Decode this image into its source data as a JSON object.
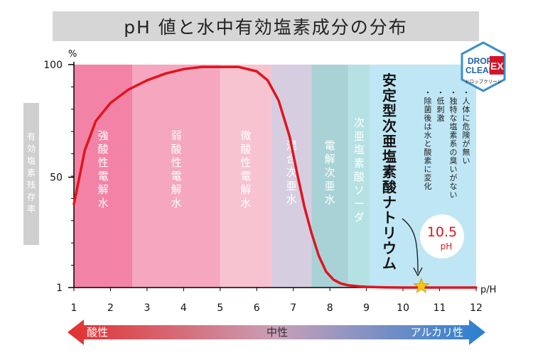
{
  "title": "pH 値と水中有効塩素成分の分布",
  "ylabel": "有効塩素残存率",
  "yunit": "%",
  "xunit": "p/H",
  "logo": {
    "line1": "DROP",
    "line2": "CLEAN",
    "badge": "EX",
    "sub": "ドロップクリーン"
  },
  "chart_data": {
    "type": "line",
    "title": "pH 値と水中有効塩素成分の分布",
    "xlabel": "p/H",
    "ylabel": "有効塩素残存率",
    "xlim": [
      1,
      12
    ],
    "ylim": [
      1,
      100
    ],
    "x_ticks": [
      1,
      2,
      3,
      4,
      5,
      6,
      7,
      8,
      9,
      10,
      11,
      12
    ],
    "y_ticks": [
      1,
      50,
      100
    ],
    "series": [
      {
        "x": [
          1.0,
          1.3,
          1.6,
          2.0,
          2.5,
          3.0,
          3.5,
          4.0,
          4.5,
          5.0,
          5.5,
          6.0,
          6.3,
          6.6,
          6.9,
          7.1,
          7.3,
          7.5,
          7.7,
          7.9,
          8.1,
          8.3,
          8.5,
          8.8,
          9.0,
          9.5,
          10.0,
          11.0,
          12.0
        ],
        "y": [
          38,
          62,
          75,
          83,
          89,
          93,
          96,
          98,
          99,
          99,
          99,
          97,
          93,
          84,
          68,
          52,
          37,
          25,
          15,
          8,
          4.5,
          2.8,
          2.0,
          1.5,
          1.3,
          1.1,
          1.0,
          1.0,
          1.0
        ]
      }
    ],
    "regions": [
      {
        "label": "強酸性電解水",
        "from": 1,
        "to": 2.6,
        "color": "#f283a6"
      },
      {
        "label": "弱酸性電解水",
        "from": 2.6,
        "to": 5.0,
        "color": "#f4a7bf"
      },
      {
        "label": "微酸性電解水",
        "from": 5.0,
        "to": 6.4,
        "color": "#f7c3d0"
      },
      {
        "label": "混合次亜水",
        "from": 6.4,
        "to": 7.5,
        "color": "#d7cde0"
      },
      {
        "label": "電解次亜水",
        "from": 7.5,
        "to": 8.5,
        "color": "#a9d2d6"
      },
      {
        "label": "次亜塩素酸ソーダ",
        "from": 8.5,
        "to": 9.1,
        "color": "#b6e1e3"
      },
      {
        "label": "",
        "from": 9.1,
        "to": 12,
        "color": "#bfe6f5"
      }
    ],
    "highlight": {
      "label": "安定型次亜塩素酸ナトリウム",
      "ph_value": "10.5",
      "ph_unit": "pH",
      "x": 10.5,
      "y": 1
    },
    "bullets": [
      "・人体に危険が無い",
      "・独特な塩素系の臭いがない",
      "・低刺激",
      "・除菌後は水と酸素に変化"
    ]
  },
  "scale": {
    "left": "酸性",
    "middle": "中性",
    "right": "アルカリ性",
    "colors": [
      "#e23030",
      "#c9a0b8",
      "#2a7fd0"
    ]
  },
  "colors": {
    "curve": "#e0141e",
    "star": "#f7c518",
    "bubble_text": "#e0141e"
  }
}
